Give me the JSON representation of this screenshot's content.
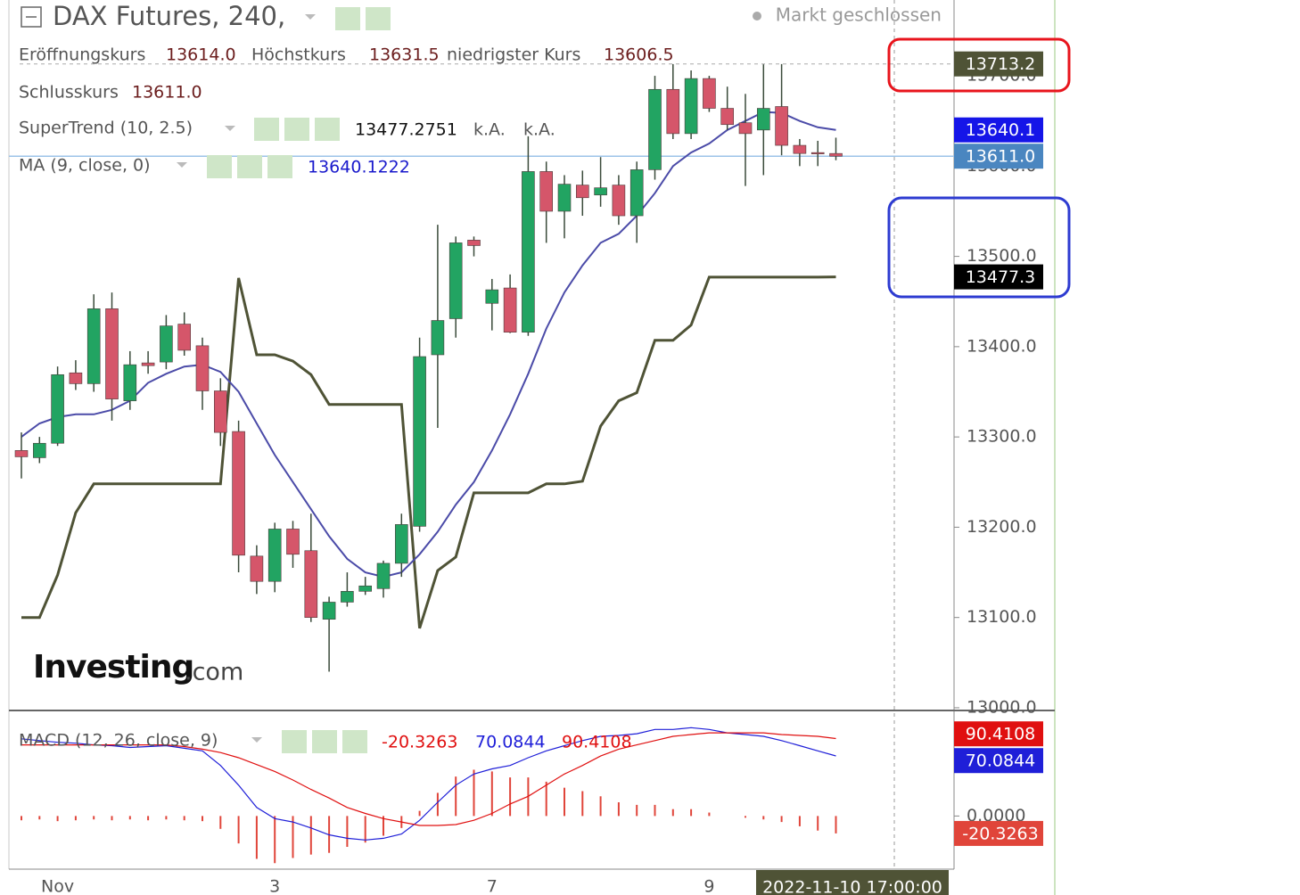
{
  "header": {
    "title": "DAX Futures, 240,",
    "status": "Markt geschlossen",
    "ohlc": [
      {
        "label": "Eröffnungskurs",
        "value": "13614.0"
      },
      {
        "label": "Höchstkurs",
        "value": "13631.5"
      },
      {
        "label": "niedrigster Kurs",
        "value": "13606.5"
      },
      {
        "label": "Schlusskurs",
        "value": "13611.0"
      }
    ],
    "supertrend_extra": [
      "k.A.",
      "k.A."
    ],
    "watermark": [
      "Investing",
      ".com"
    ]
  },
  "chart_data": [
    {
      "type": "candlestick",
      "categories": [
        null,
        null,
        "Nov",
        null,
        null,
        null,
        null,
        null,
        null,
        null,
        null,
        null,
        null,
        null,
        "3",
        null,
        null,
        null,
        null,
        null,
        null,
        null,
        null,
        null,
        null,
        null,
        "7",
        null,
        null,
        null,
        null,
        null,
        null,
        null,
        null,
        null,
        null,
        null,
        "9",
        null,
        null,
        null,
        null,
        null,
        null,
        null
      ],
      "open": [
        13285,
        13277,
        13293,
        13371,
        13359,
        13442,
        13340,
        13382,
        13383,
        13425,
        13401,
        13351,
        13306,
        13168,
        13140,
        13198,
        13174,
        13098,
        13117,
        13129,
        13132,
        13160,
        13201,
        13391,
        13431,
        13518,
        13448,
        13465,
        13416,
        13594,
        13550,
        13579,
        13568,
        13579,
        13545,
        13596,
        13685,
        13636,
        13697,
        13664,
        13648,
        13640,
        13666,
        13623,
        13615,
        13614
      ],
      "high": [
        13305,
        13300,
        13378,
        13385,
        13458,
        13460,
        13395,
        13395,
        13435,
        13438,
        13410,
        13365,
        13318,
        13180,
        13205,
        13207,
        13215,
        13123,
        13150,
        13145,
        13163,
        13215,
        13410,
        13535,
        13522,
        13522,
        13475,
        13480,
        13633,
        13605,
        13590,
        13595,
        13610,
        13590,
        13605,
        13700,
        13713,
        13706,
        13700,
        13688,
        13680,
        13713,
        13713,
        13630,
        13628,
        13631.5
      ],
      "low": [
        13254,
        13271,
        13290,
        13352,
        13350,
        13318,
        13330,
        13370,
        13375,
        13390,
        13330,
        13290,
        13150,
        13126,
        13128,
        13155,
        13095,
        13040,
        13112,
        13125,
        13122,
        13145,
        13195,
        13310,
        13410,
        13500,
        13418,
        13415,
        13412,
        13515,
        13520,
        13545,
        13555,
        13535,
        13515,
        13585,
        13630,
        13630,
        13660,
        13640,
        13578,
        13590,
        13612,
        13600,
        13600,
        13606.5
      ],
      "close": [
        13278,
        13293,
        13369,
        13359,
        13442,
        13342,
        13380,
        13379,
        13423,
        13396,
        13351,
        13305,
        13169,
        13140,
        13198,
        13170,
        13100,
        13117,
        13129,
        13135,
        13160,
        13203,
        13389,
        13429,
        13515,
        13512,
        13463,
        13416,
        13594,
        13550,
        13580,
        13565,
        13576,
        13545,
        13596,
        13685,
        13636,
        13697,
        13664,
        13646,
        13636,
        13664,
        13623,
        13614,
        13614,
        13611
      ],
      "up_color": "#22a462",
      "down_color": "#d5566a",
      "series": [
        {
          "name": "SuperTrend (10, 2.5)",
          "color": "#4f5336",
          "values": [
            13100,
            13100,
            13147,
            13216,
            13248,
            13248,
            13248,
            13248,
            13248,
            13248,
            13248,
            13248,
            13476,
            13391,
            13391,
            13384,
            13369,
            13336,
            13336,
            13336,
            13336,
            13336,
            13088,
            13152,
            13167,
            13238,
            13238,
            13238,
            13238,
            13248,
            13248,
            13251,
            13312,
            13340,
            13349,
            13407,
            13407,
            13424,
            13477,
            13477,
            13477,
            13477,
            13477,
            13477,
            13477,
            13477.2751
          ]
        },
        {
          "name": "MA (9, close, 0)",
          "color": "#4b4ba8",
          "values": [
            13300,
            13315,
            13322,
            13325,
            13325,
            13330,
            13340,
            13360,
            13370,
            13378,
            13380,
            13372,
            13350,
            13315,
            13280,
            13250,
            13220,
            13190,
            13165,
            13150,
            13145,
            13150,
            13170,
            13195,
            13225,
            13250,
            13285,
            13325,
            13370,
            13420,
            13460,
            13490,
            13515,
            13525,
            13545,
            13570,
            13600,
            13615,
            13625,
            13640,
            13650,
            13660,
            13659,
            13650,
            13643,
            13640.1222
          ]
        }
      ],
      "ylim": [
        12997,
        13784
      ],
      "yticks": [
        {
          "value": 13000,
          "label": "13000.0"
        },
        {
          "value": 13100,
          "label": "13100.0"
        },
        {
          "value": 13200,
          "label": "13200.0"
        },
        {
          "value": 13300,
          "label": "13300.0"
        },
        {
          "value": 13400,
          "label": "13400.0"
        },
        {
          "value": 13500,
          "label": "13500.0"
        },
        {
          "value": 13600,
          "label": "13600.0"
        },
        {
          "value": 13700,
          "label": "13700.0"
        }
      ],
      "grid": false,
      "badges": [
        {
          "value": 13640.1,
          "label": "13640.1",
          "color": "#1515e8"
        },
        {
          "value": 13611.0,
          "label": "13611.0",
          "color": "#4a86c0"
        },
        {
          "value": 13477.3,
          "label": "13477.3",
          "color": "#000000"
        }
      ],
      "crosshair": {
        "value": 13713.2,
        "label": "13713.2",
        "time": "2022-11-10 17:00:00",
        "color": "#4f5336"
      }
    },
    {
      "type": "macd",
      "title": "MACD (12, 26, close, 9)",
      "series": [
        {
          "color": "#e0453a",
          "values": [
            -5,
            -4,
            -6,
            -5,
            -4,
            -5,
            -4,
            -5,
            -4,
            -5,
            -6,
            -15,
            -32,
            -50,
            -55,
            -49,
            -45,
            -43,
            -36,
            -31,
            -23,
            -14,
            6,
            27,
            46,
            54,
            52,
            45,
            45,
            40,
            33,
            29,
            23,
            16,
            13,
            13,
            8,
            8,
            4,
            0,
            -2,
            -4,
            -7,
            -12,
            -17,
            -20.3263
          ]
        },
        {
          "color": "#1f1fd8",
          "values": [
            90,
            88,
            86,
            85,
            83,
            82,
            80,
            81,
            82,
            79,
            76,
            59,
            36,
            10,
            -3,
            -7,
            -14,
            -22,
            -26,
            -28,
            -26,
            -21,
            -5,
            16,
            36,
            49,
            55,
            59,
            68,
            76,
            82,
            88,
            93,
            94,
            96,
            101,
            101,
            103,
            101,
            97,
            95,
            93,
            88,
            82,
            76,
            70.0844
          ]
        },
        {
          "color": "#e01010",
          "values": [
            83,
            83,
            83,
            83,
            83,
            83,
            83,
            83,
            83,
            81,
            78,
            74,
            68,
            60,
            52,
            42,
            31,
            21,
            10,
            3,
            -3,
            -7,
            -11,
            -11,
            -10,
            -5,
            3,
            14,
            23,
            36,
            49,
            59,
            70,
            78,
            83,
            88,
            93,
            95,
            97,
            97,
            97,
            97,
            95,
            94,
            93,
            90.4108
          ]
        }
      ],
      "ylim": [
        -62,
        120
      ],
      "yticks": [
        {
          "value": 0,
          "label": "0.0000"
        }
      ]
    }
  ]
}
